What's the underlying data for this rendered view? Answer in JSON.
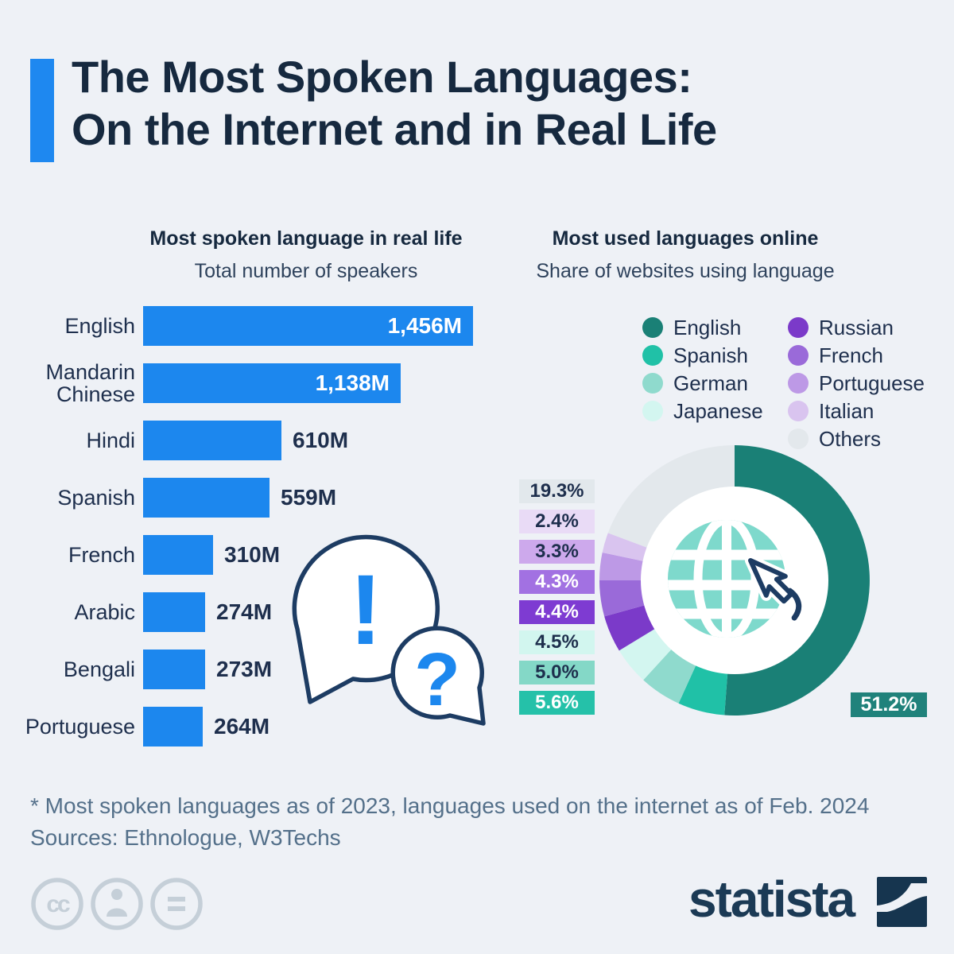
{
  "header": {
    "title_line1": "The Most Spoken Languages:",
    "title_line2": "On the Internet and in Real Life",
    "accent_color": "#1e88f0"
  },
  "palette": {
    "background": "#eef1f6",
    "title_navy": "#16293f",
    "text_navy": "#1e2f4d",
    "footer_slate": "#54708a",
    "bar_blue": "#1c87ee",
    "bubble_outline_navy": "#1d3c63",
    "globe_teal": "#7ed9cc"
  },
  "chart_data": [
    {
      "type": "bar",
      "orientation": "horizontal",
      "title": "Most spoken language in real life",
      "subtitle": "Total number of speakers",
      "categories": [
        "English",
        "Mandarin Chinese",
        "Hindi",
        "Spanish",
        "French",
        "Arabic",
        "Bengali",
        "Portuguese"
      ],
      "values": [
        1456,
        1138,
        610,
        559,
        310,
        274,
        273,
        264
      ],
      "labels": [
        "1,456M",
        "1,138M",
        "610M",
        "559M",
        "310M",
        "274M",
        "273M",
        "264M"
      ],
      "unit": "million speakers",
      "bar_color": "#1c87ee",
      "xlim": [
        0,
        1456
      ],
      "grid": false
    },
    {
      "type": "donut",
      "title": "Most used languages online",
      "subtitle": "Share of websites using language",
      "start_angle_deg": 0,
      "clockwise": true,
      "slices": [
        {
          "name": "English",
          "value": 51.2,
          "label": "51.2%",
          "color": "#1a8076",
          "callout_bg": "#20827b",
          "callout_fg": "#ffffff"
        },
        {
          "name": "Spanish",
          "value": 5.6,
          "label": "5.6%",
          "color": "#20c1a7",
          "side_bg": "#25c1a9",
          "side_fg": "#ffffff"
        },
        {
          "name": "German",
          "value": 5.0,
          "label": "5.0%",
          "color": "#8fdacd",
          "side_bg": "#84d8c7",
          "side_fg": "#1e2f4d"
        },
        {
          "name": "Japanese",
          "value": 4.5,
          "label": "4.5%",
          "color": "#d3f6f0",
          "side_bg": "#d2f6ef",
          "side_fg": "#1e2f4d"
        },
        {
          "name": "Russian",
          "value": 4.4,
          "label": "4.4%",
          "color": "#7b3ac9",
          "side_bg": "#7e3bd2",
          "side_fg": "#ffffff"
        },
        {
          "name": "French",
          "value": 4.3,
          "label": "4.3%",
          "color": "#9a6ad9",
          "side_bg": "#a271e2",
          "side_fg": "#ffffff"
        },
        {
          "name": "Portuguese",
          "value": 3.3,
          "label": "3.3%",
          "color": "#bd99e6",
          "side_bg": "#cda9ec",
          "side_fg": "#1e2f4d"
        },
        {
          "name": "Italian",
          "value": 2.4,
          "label": "2.4%",
          "color": "#d9c4ef",
          "side_bg": "#e9dbf6",
          "side_fg": "#1e2f4d"
        },
        {
          "name": "Others",
          "value": 19.3,
          "label": "19.3%",
          "color": "#e3e8ec",
          "side_bg": "#e2e8ec",
          "side_fg": "#1e2f4d"
        }
      ],
      "legend_columns": [
        [
          "English",
          "Spanish",
          "German",
          "Japanese"
        ],
        [
          "Russian",
          "French",
          "Portuguese",
          "Italian",
          "Others"
        ]
      ],
      "stack_order_top_to_bottom": [
        "Others",
        "Italian",
        "Portuguese",
        "French",
        "Russian",
        "Japanese",
        "German",
        "Spanish"
      ],
      "legend_position": "top-right"
    }
  ],
  "footnote": "* Most spoken languages as of 2023, languages used on the internet as of Feb. 2024",
  "sources": "Sources: Ethnologue, W3Techs",
  "branding": {
    "logo_text": "statista"
  },
  "icons": {
    "bubble_exclamation": "!",
    "bubble_question": "?"
  }
}
